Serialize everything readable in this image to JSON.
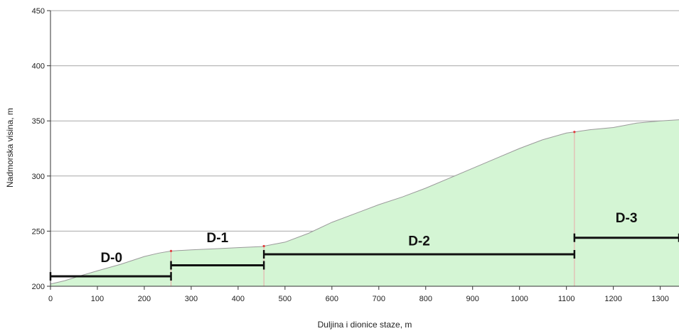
{
  "chart_data": {
    "type": "area",
    "xlabel": "Duljina i dionice staze, m",
    "ylabel": "Nadmorska visina, m",
    "xlim": [
      0,
      1340
    ],
    "ylim": [
      200,
      450
    ],
    "x_ticks": [
      "0",
      "100",
      "200",
      "300",
      "400",
      "500",
      "600",
      "700",
      "800",
      "900",
      "1000",
      "1100",
      "1200",
      "1300"
    ],
    "y_ticks": [
      "200",
      "250",
      "300",
      "350",
      "400",
      "450"
    ],
    "grid": "horizontal",
    "fill_color": "#d4f5d4",
    "line_color": "#9a9a9a",
    "x": [
      0,
      30,
      60,
      100,
      150,
      200,
      230,
      257,
      300,
      350,
      400,
      450,
      500,
      550,
      600,
      650,
      700,
      750,
      800,
      850,
      900,
      950,
      1000,
      1050,
      1100,
      1117,
      1150,
      1200,
      1250,
      1300,
      1340
    ],
    "y": [
      202,
      205,
      209,
      214,
      220,
      227,
      230,
      232,
      233,
      234,
      235,
      236,
      240,
      248,
      258,
      266,
      274,
      281,
      289,
      298,
      307,
      316,
      325,
      333,
      339,
      340,
      342,
      344,
      348,
      350,
      351
    ],
    "markers_x": [
      257,
      455,
      1117
    ],
    "segments": [
      {
        "label": "D-0",
        "x_start": 0,
        "x_end": 257,
        "y": 209,
        "label_x": 130,
        "label_y": 222
      },
      {
        "label": "D-1",
        "x_start": 257,
        "x_end": 455,
        "y": 219,
        "label_x": 356,
        "label_y": 240
      },
      {
        "label": "D-2",
        "x_start": 455,
        "x_end": 1117,
        "y": 229,
        "label_x": 786,
        "label_y": 237
      },
      {
        "label": "D-3",
        "x_start": 1117,
        "x_end": 1340,
        "y": 244,
        "label_x": 1228,
        "label_y": 258
      }
    ]
  }
}
